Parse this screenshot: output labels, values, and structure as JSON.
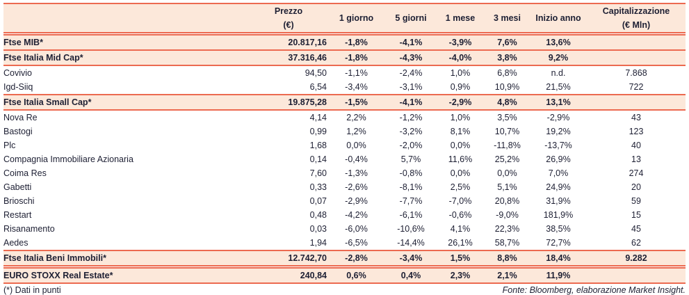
{
  "colors": {
    "accent": "#ec6a50",
    "row_highlight": "#fce8da",
    "text": "#1d1f33"
  },
  "table": {
    "columns": [
      {
        "label": ""
      },
      {
        "label": "Prezzo",
        "sub": "(€)"
      },
      {
        "label": "1 giorno"
      },
      {
        "label": "5 giorni"
      },
      {
        "label": "1 mese"
      },
      {
        "label": "3 mesi"
      },
      {
        "label": "Inizio anno"
      },
      {
        "label": "Capitalizzazione",
        "sub": "(€ Mln)"
      }
    ],
    "rows": [
      {
        "name": "Ftse MIB*",
        "emphasis": true,
        "gap_above": true,
        "rule_above": true,
        "rule_below": true,
        "values": [
          "20.817,16",
          "-1,8%",
          "-4,1%",
          "-3,9%",
          "7,6%",
          "13,6%",
          ""
        ]
      },
      {
        "name": "Ftse Italia Mid Cap*",
        "emphasis": true,
        "rule_below": true,
        "values": [
          "37.316,46",
          "-1,8%",
          "-4,3%",
          "-4,0%",
          "3,8%",
          "9,2%",
          ""
        ]
      },
      {
        "name": "Covivio",
        "values": [
          "94,50",
          "-1,1%",
          "-2,4%",
          "1,0%",
          "6,8%",
          "n.d.",
          "7.868"
        ]
      },
      {
        "name": "Igd-Siiq",
        "rule_below": true,
        "values": [
          "6,54",
          "-3,4%",
          "-3,1%",
          "0,9%",
          "10,9%",
          "21,5%",
          "722"
        ]
      },
      {
        "name": "Ftse Italia Small Cap*",
        "emphasis": true,
        "rule_below": true,
        "values": [
          "19.875,28",
          "-1,5%",
          "-4,1%",
          "-2,9%",
          "4,8%",
          "13,1%",
          ""
        ]
      },
      {
        "name": "Nova Re",
        "values": [
          "4,14",
          "2,2%",
          "-1,2%",
          "1,0%",
          "3,5%",
          "-2,9%",
          "43"
        ]
      },
      {
        "name": "Bastogi",
        "values": [
          "0,99",
          "1,2%",
          "-3,2%",
          "8,1%",
          "10,7%",
          "19,2%",
          "123"
        ]
      },
      {
        "name": "Plc",
        "values": [
          "1,68",
          "0,0%",
          "-2,0%",
          "0,0%",
          "-11,8%",
          "-13,7%",
          "40"
        ]
      },
      {
        "name": "Compagnia Immobiliare Azionaria",
        "values": [
          "0,14",
          "-0,4%",
          "5,7%",
          "11,6%",
          "25,2%",
          "26,9%",
          "13"
        ]
      },
      {
        "name": "Coima Res",
        "values": [
          "7,60",
          "-1,3%",
          "-0,8%",
          "0,0%",
          "0,0%",
          "7,0%",
          "274"
        ]
      },
      {
        "name": "Gabetti",
        "values": [
          "0,33",
          "-2,6%",
          "-8,1%",
          "2,5%",
          "5,1%",
          "24,9%",
          "20"
        ]
      },
      {
        "name": "Brioschi",
        "values": [
          "0,07",
          "-2,9%",
          "-7,7%",
          "-7,0%",
          "20,8%",
          "31,9%",
          "59"
        ]
      },
      {
        "name": "Restart",
        "values": [
          "0,48",
          "-4,2%",
          "-6,1%",
          "-0,6%",
          "-9,0%",
          "181,9%",
          "15"
        ]
      },
      {
        "name": "Risanamento",
        "values": [
          "0,03",
          "-6,0%",
          "-10,6%",
          "4,1%",
          "22,3%",
          "38,5%",
          "45"
        ]
      },
      {
        "name": "Aedes",
        "rule_below": true,
        "values": [
          "1,94",
          "-6,5%",
          "-14,4%",
          "26,1%",
          "58,7%",
          "72,7%",
          "62"
        ]
      },
      {
        "name": "Ftse Italia Beni Immobili*",
        "emphasis": true,
        "rule_below": true,
        "values": [
          "12.742,70",
          "-2,8%",
          "-3,4%",
          "1,5%",
          "8,8%",
          "18,4%",
          "9.282"
        ]
      },
      {
        "name": "EURO STOXX Real Estate*",
        "emphasis": true,
        "gap_above": true,
        "rule_above": true,
        "rule_below": true,
        "values": [
          "240,84",
          "0,6%",
          "0,4%",
          "2,3%",
          "2,1%",
          "11,9%",
          ""
        ]
      }
    ]
  },
  "footnotes": {
    "left": "(*) Dati in punti",
    "right": "Fonte: Bloomberg, elaborazione Market Insight."
  }
}
